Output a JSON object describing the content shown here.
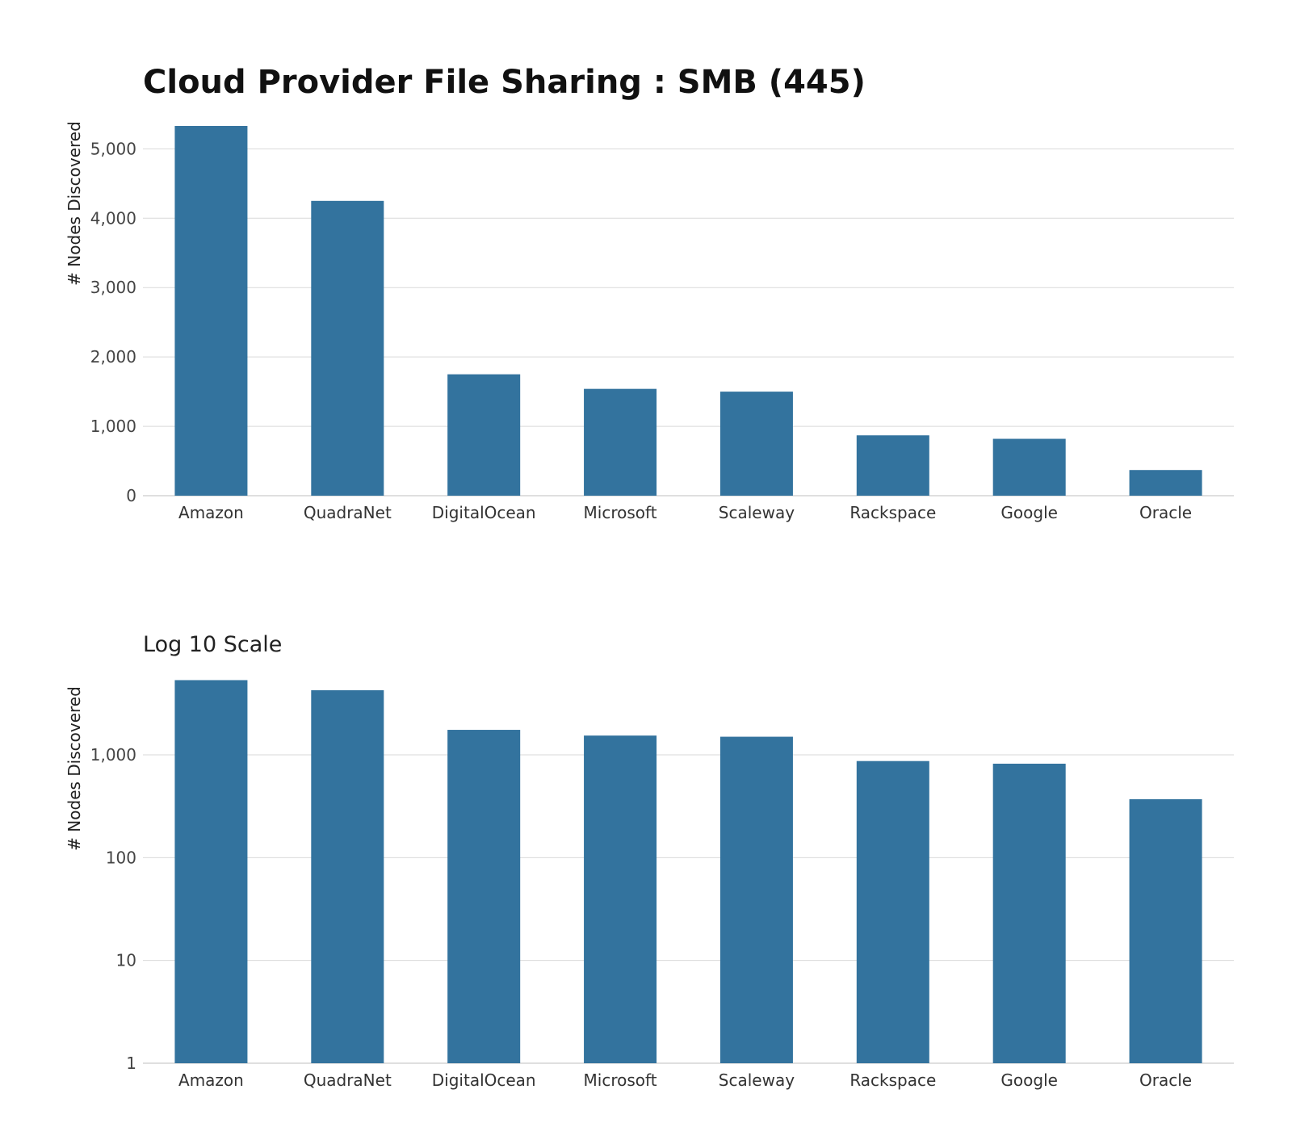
{
  "title": "Cloud Provider File Sharing : SMB (445)",
  "bar_color": "#33739e",
  "chart_data": [
    {
      "type": "bar",
      "title": "Cloud Provider File Sharing : SMB (445)",
      "subtitle": "",
      "xlabel": "",
      "ylabel": "# Nodes Discovered",
      "scale": "linear",
      "ylim": [
        0,
        5400
      ],
      "yticks": [
        0,
        1000,
        2000,
        3000,
        4000,
        5000
      ],
      "ytick_labels": [
        "0",
        "1,000",
        "2,000",
        "3,000",
        "4,000",
        "5,000"
      ],
      "categories": [
        "Amazon",
        "QuadraNet",
        "DigitalOcean",
        "Microsoft",
        "Scaleway",
        "Rackspace",
        "Google",
        "Oracle"
      ],
      "values": [
        5330,
        4250,
        1750,
        1540,
        1500,
        870,
        820,
        370
      ]
    },
    {
      "type": "bar",
      "title": "Log 10 Scale",
      "subtitle": "",
      "xlabel": "",
      "ylabel": "# Nodes Discovered",
      "scale": "log10",
      "ylim": [
        1,
        8000
      ],
      "yticks": [
        1,
        10,
        100,
        1000
      ],
      "ytick_labels": [
        "1",
        "10",
        "100",
        "1,000"
      ],
      "categories": [
        "Amazon",
        "QuadraNet",
        "DigitalOcean",
        "Microsoft",
        "Scaleway",
        "Rackspace",
        "Google",
        "Oracle"
      ],
      "values": [
        5330,
        4250,
        1750,
        1540,
        1500,
        870,
        820,
        370
      ]
    }
  ]
}
